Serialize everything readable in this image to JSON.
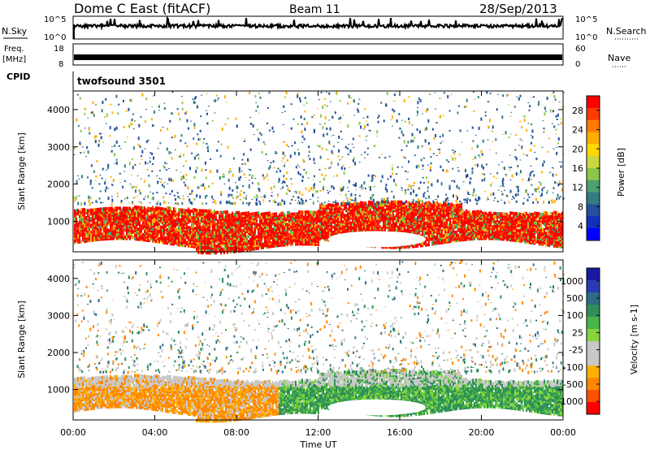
{
  "header": {
    "station": "Dome C East (fitACF)",
    "beam": "Beam 11",
    "date": "28/Sep/2013"
  },
  "nsky_panel": {
    "left_label": "N.Sky",
    "left_ticks": [
      "10^5",
      "10^0"
    ],
    "right_ticks": [
      "10^5",
      "10^0"
    ],
    "right_label": "N.Search"
  },
  "freq_panel": {
    "label_line1": "Freq.",
    "label_line2": "[MHz]",
    "left_ticks": [
      "18",
      "8"
    ],
    "right_ticks": [
      "60",
      "0"
    ],
    "right_label": "Nave"
  },
  "cpid_panel": {
    "label": "CPID",
    "program": "twofsound 3501"
  },
  "chart_data": [
    {
      "type": "heatmap",
      "name": "power",
      "ylabel": "Slant Range [km]",
      "yticks": [
        "4000",
        "3000",
        "2000",
        "1000"
      ],
      "ylim": [
        180,
        4500
      ],
      "xlim": [
        0,
        24
      ],
      "colorbar": {
        "label": "Power [dB]",
        "ticks": [
          "28",
          "24",
          "20",
          "16",
          "12",
          "8",
          "4"
        ],
        "colors": [
          "#ff0000",
          "#ff3a00",
          "#ff7a00",
          "#ffae00",
          "#ffd800",
          "#c8d840",
          "#8cc848",
          "#4ca070",
          "#347c84",
          "#24509c",
          "#1030c0",
          "#0000ff"
        ]
      }
    },
    {
      "type": "heatmap",
      "name": "velocity",
      "ylabel": "Slant Range [km]",
      "yticks": [
        "4000",
        "3000",
        "2000",
        "1000"
      ],
      "ylim": [
        180,
        4500
      ],
      "xlim": [
        0,
        24
      ],
      "xticks": [
        "00:00",
        "04:00",
        "08:00",
        "12:00",
        "16:00",
        "20:00",
        "00:00"
      ],
      "xlabel": "Time UT",
      "colorbar": {
        "label": "Velocity [m s-1]",
        "ticks": [
          "1000",
          "500",
          "100",
          "25",
          "-25",
          "-100",
          "-500",
          "-1000"
        ],
        "colors": [
          "#1a1aa0",
          "#2a3ab4",
          "#2c6c84",
          "#2f8f5a",
          "#47b547",
          "#86d43f",
          "#c8c8c8",
          "#c8c8c8",
          "#ffb000",
          "#ff8800",
          "#ff5000",
          "#ff0000"
        ]
      }
    }
  ]
}
